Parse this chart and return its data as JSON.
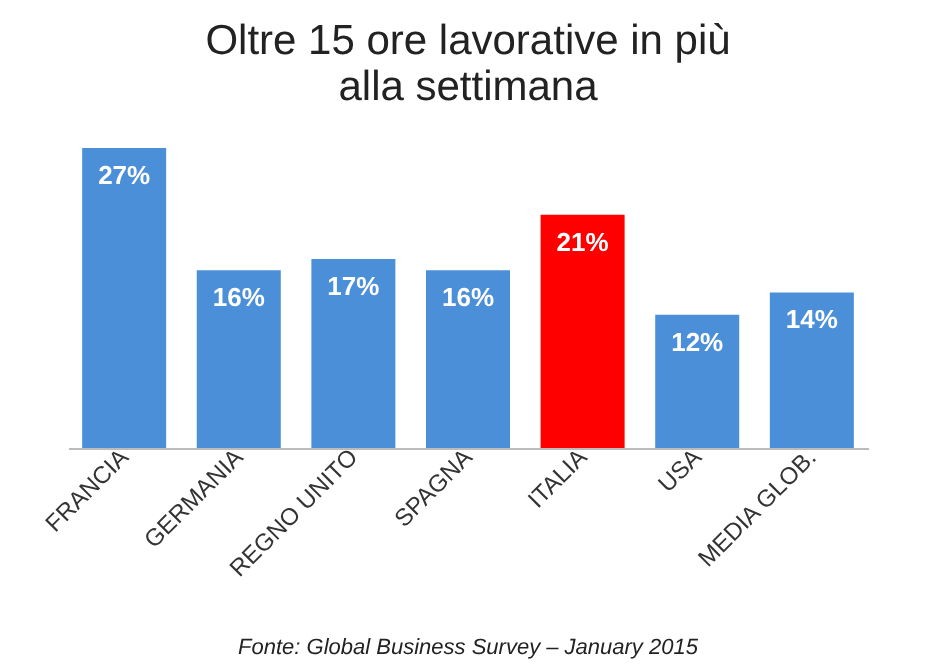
{
  "chart_data": {
    "type": "bar",
    "title": "Oltre 15 ore lavorative in più\nalla settimana",
    "categories": [
      "FRANCIA",
      "GERMANIA",
      "REGNO UNITO",
      "SPAGNA",
      "ITALIA",
      "USA",
      "MEDIA GLOB."
    ],
    "values": [
      27,
      16,
      17,
      16,
      21,
      12,
      14
    ],
    "value_labels": [
      "27%",
      "16%",
      "17%",
      "16%",
      "21%",
      "12%",
      "14%"
    ],
    "colors": [
      "#4a8fd8",
      "#4a8fd8",
      "#4a8fd8",
      "#4a8fd8",
      "#ff0000",
      "#4a8fd8",
      "#4a8fd8"
    ],
    "annotations": [
      "Fonte: Global Business Survey – January 2015"
    ],
    "grid": false
  }
}
